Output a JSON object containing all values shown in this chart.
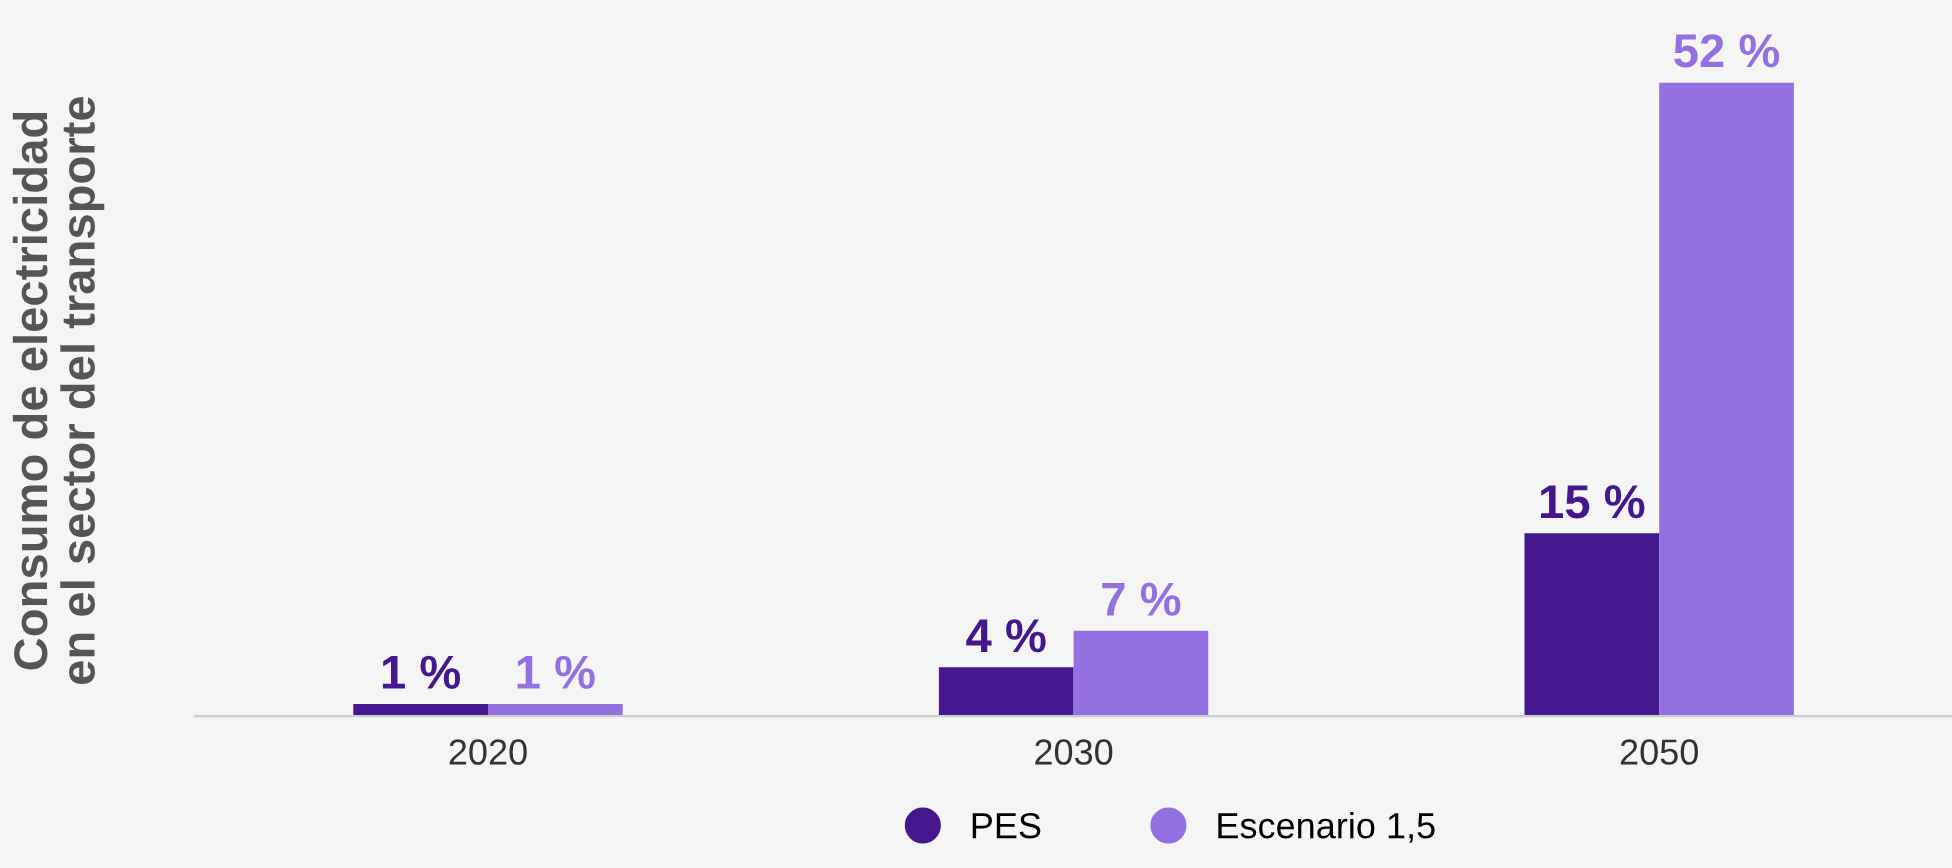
{
  "chart_data": {
    "type": "bar",
    "ylabel": "Consumo de electricidad\nen el sector del transporte",
    "categories": [
      "2020",
      "2030",
      "2050"
    ],
    "legend": "bottom",
    "grid": false,
    "series": [
      {
        "name": "PES",
        "color": "#44178f",
        "values": [
          1,
          4,
          15
        ],
        "value_labels": [
          "1 %",
          "4 %",
          "15 %"
        ]
      },
      {
        "name": "Escenario 1,5",
        "color": "#9470e0",
        "values": [
          1,
          7,
          52
        ],
        "value_labels": [
          "1 %",
          "7 %",
          "52 %"
        ]
      }
    ]
  }
}
